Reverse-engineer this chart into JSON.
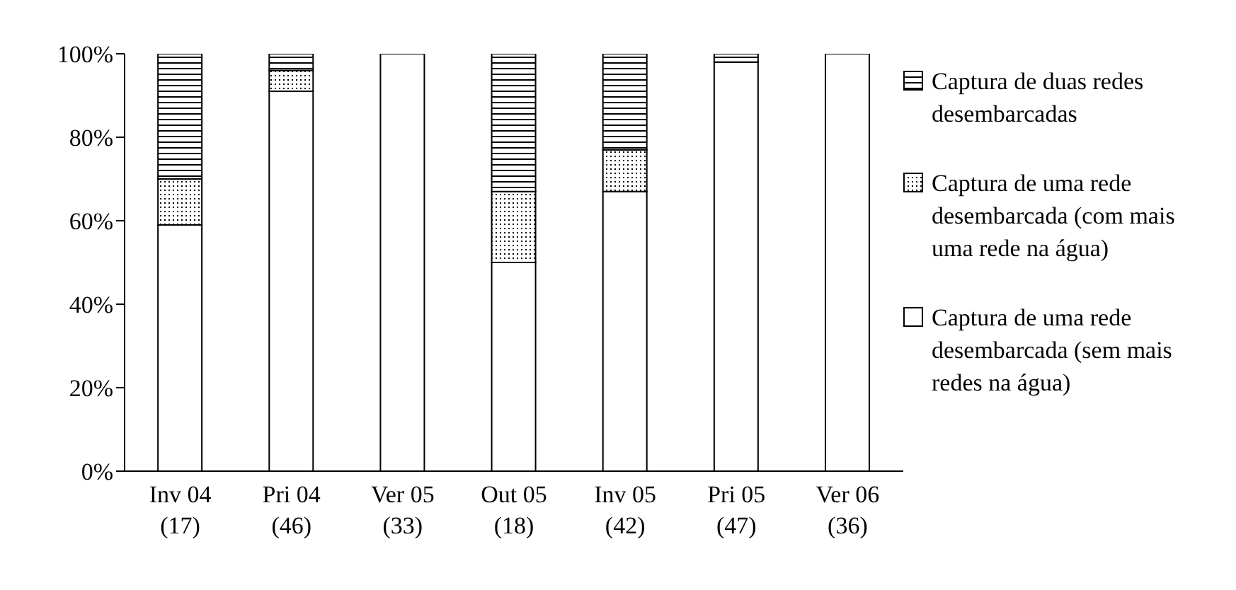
{
  "chart_data": {
    "type": "bar",
    "stacked": true,
    "legend": "right",
    "categories": [
      "Inv 04 (17)",
      "Pri 04 (46)",
      "Ver 05 (33)",
      "Out 05 (18)",
      "Inv 05 (42)",
      "Pri 05 (47)",
      "Ver 06 (36)"
    ],
    "series": [
      {
        "name": "Captura de uma rede desembarcada (sem mais redes na água)",
        "color": "#ffffff",
        "values": [
          59,
          91,
          100,
          50,
          67,
          98,
          100
        ]
      },
      {
        "name": "Captura de uma rede desembarcada (com mais uma rede na água)",
        "color": "#000000",
        "values": [
          11,
          5,
          0,
          17,
          10,
          0,
          0
        ]
      },
      {
        "name": "Captura de duas redes desembarcadas",
        "color": "#000000",
        "values": [
          30,
          4,
          0,
          33,
          23,
          2,
          0
        ]
      }
    ],
    "ylim": [
      0,
      100
    ],
    "yticks": [
      {
        "value": 0,
        "label": "0%"
      },
      {
        "value": 20,
        "label": "20%"
      },
      {
        "value": 40,
        "label": "40%"
      },
      {
        "value": 60,
        "label": "60%"
      },
      {
        "value": 80,
        "label": "80%"
      },
      {
        "value": 100,
        "label": "100%"
      }
    ]
  }
}
